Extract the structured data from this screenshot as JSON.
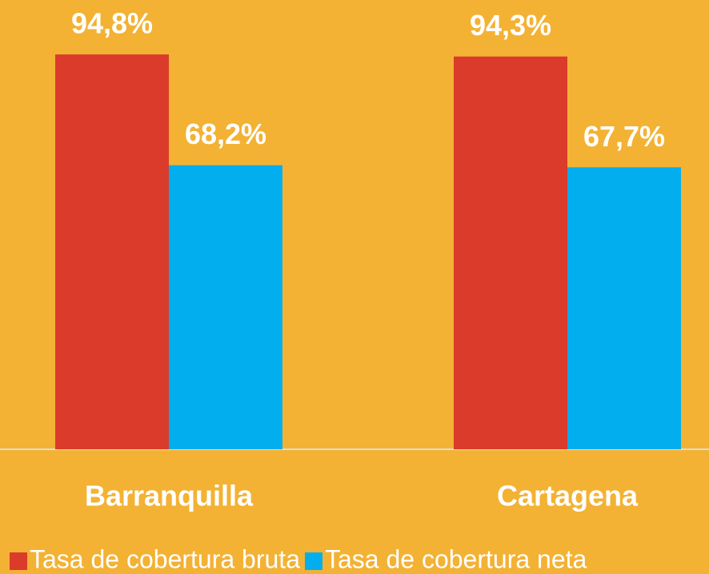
{
  "chart_data": {
    "type": "bar",
    "categories": [
      "Barranquilla",
      "Cartagena"
    ],
    "series": [
      {
        "name": "Tasa de cobertura bruta",
        "color": "#db3b2b",
        "values": [
          94.8,
          94.3
        ],
        "value_labels": [
          "94,8%",
          "94,3%"
        ]
      },
      {
        "name": "Tasa de cobertura neta",
        "color": "#03aeef",
        "values": [
          68.2,
          67.7
        ],
        "value_labels": [
          "68,2%",
          "67,7%"
        ]
      }
    ],
    "ylim": [
      0,
      100
    ]
  }
}
